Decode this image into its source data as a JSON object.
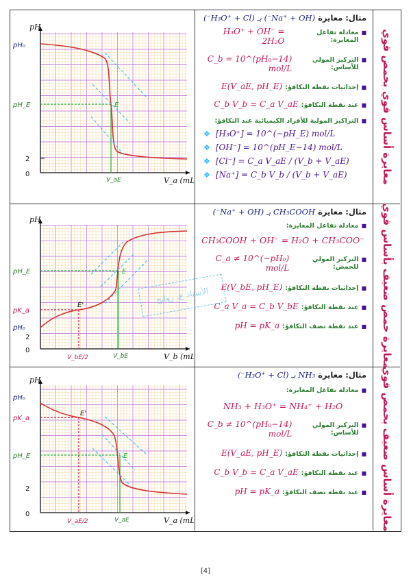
{
  "page_number": "[4]",
  "stamp_text": "الأستاذ ع. روابح",
  "sections": [
    {
      "side_title": "معايرة أساس قوي بحمض قوي",
      "example_label": "مثال: معايرة",
      "example_formula": "(Na⁺ + OH⁻) بـ (H₃O⁺ + Cl⁻)",
      "lines": [
        {
          "label": "معادلة تفاعل المعايرة:",
          "math": "H₃O⁺ + OH⁻ = 2H₂O"
        },
        {
          "label": "التركيز المولي للأساس:",
          "math": "C_b = 10^(pH₀−14) mol/L"
        },
        {
          "label": "إحداثيات نقطة التكافؤ:",
          "math": "E(V_aE, pH_E)"
        },
        {
          "label": "عند نقطة التكافؤ:",
          "math": "C_b V_b = C_a V_aE"
        },
        {
          "label": "التراكيز المولية للأفراد الكيميائية عند التكافؤ:",
          "math": ""
        }
      ],
      "items": [
        "[H₃O⁺] = 10^(−pH_E) mol/L",
        "[OH⁻] = 10^(pH_E−14) mol/L",
        "[Cl⁻] = C_a V_aE / (V_b + V_aE)",
        "[Na⁺] = C_b V_b / (V_b + V_aE)"
      ],
      "graph": {
        "y_axis": "pH",
        "x_axis": "V_a (mL)",
        "y_labels": [
          "pH₀",
          "pH_E",
          "2",
          "0"
        ],
        "x_marks": [
          "V_aE"
        ],
        "point": "E"
      }
    },
    {
      "side_title": "معايرة حمض ضعيف بأساس قوي",
      "example_label": "مثال: معايرة",
      "example_formula": "CH₃COOH بـ (Na⁺ + OH⁻)",
      "lines": [
        {
          "label": "معادلة تفاعل المعايرة:",
          "math": ""
        },
        {
          "label": "",
          "math": "CH₃COOH + OH⁻ = H₂O + CH₃COO⁻"
        },
        {
          "label": "التركيز المولي للحمض:",
          "math": "C_a ≠ 10^(−pH₀) mol/L"
        },
        {
          "label": "إحداثيات نقطة التكافؤ:",
          "math": "E(V_bE, pH_E)"
        },
        {
          "label": "عند نقطة التكافؤ:",
          "math": "C_a V_a = C_b V_bE"
        },
        {
          "label": "عند نقطة نصف التكافؤ:",
          "math": "pH = pK_a"
        }
      ],
      "graph": {
        "y_axis": "pH",
        "x_axis": "V_b (mL)",
        "y_labels": [
          "pH_E",
          "pK_a",
          "pH₀",
          "2",
          "0"
        ],
        "x_marks": [
          "V_bE/2",
          "V_bE"
        ],
        "point": "E",
        "half_point": "E'"
      }
    },
    {
      "side_title": "معايرة أساس ضعيف بحمض قوي",
      "example_label": "مثال: معايرة",
      "example_formula": "NH₃ بـ (H₃O⁺ + Cl⁻)",
      "lines": [
        {
          "label": "معادلة تفاعل المعايرة:",
          "math": ""
        },
        {
          "label": "",
          "math": "NH₃ + H₃O⁺ = NH₄⁺ + H₂O"
        },
        {
          "label": "التركيز المولي للأساس:",
          "math": "C_b ≠ 10^(pH₀−14) mol/L"
        },
        {
          "label": "إحداثيات نقطة التكافؤ:",
          "math": "E(V_aE, pH_E)"
        },
        {
          "label": "عند نقطة التكافؤ:",
          "math": "C_b V_b = C_a V_aE"
        },
        {
          "label": "عند نقطة نصف التكافؤ:",
          "math": "pH = pK_a"
        }
      ],
      "graph": {
        "y_axis": "pH",
        "x_axis": "V_a (mL)",
        "y_labels": [
          "pH₀",
          "pK_a",
          "pH_E",
          "2",
          "0"
        ],
        "x_marks": [
          "V_aE/2",
          "V_aE"
        ],
        "point": "E",
        "half_point": "E'"
      }
    }
  ]
}
